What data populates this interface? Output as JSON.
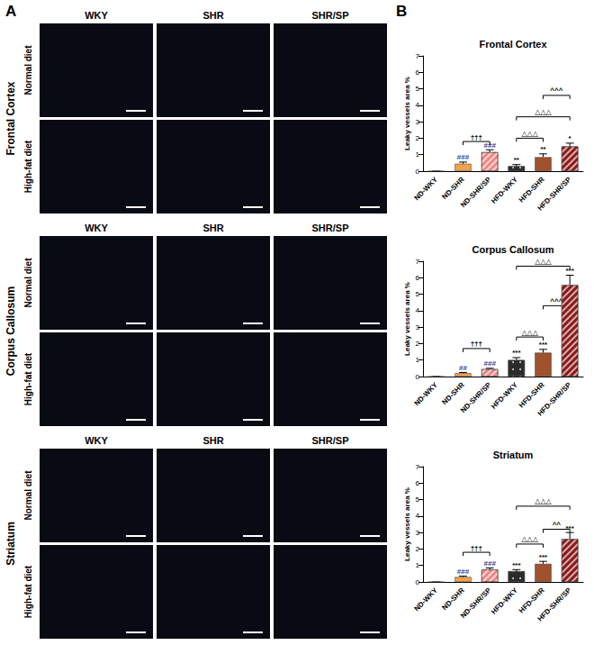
{
  "panel_a": {
    "label": "A",
    "columns": [
      "WKY",
      "SHR",
      "SHR/SP"
    ],
    "rows": [
      "Normal diet",
      "High-fat diet"
    ],
    "regions": [
      "Frontal Cortex",
      "Corpus Callosum",
      "Striatum"
    ]
  },
  "panel_b": {
    "label": "B"
  },
  "chart_data": [
    {
      "type": "bar",
      "title": "Frontal Cortex",
      "y_label": "Leaky vessels area %",
      "categories": [
        "ND-WKY",
        "ND-SHR",
        "ND-SHR/SP",
        "HFD-WKY",
        "HFD-SHR",
        "HFD-SHR/SP"
      ],
      "values": [
        0,
        0.45,
        1.15,
        0.3,
        0.85,
        1.5
      ],
      "errors": [
        0,
        0.1,
        0.15,
        0.1,
        0.2,
        0.2
      ],
      "colors": [
        "#f2a24a",
        "#f2a24a",
        "#f08585",
        "#2b2b2b",
        "#a0522d",
        "#8b1a1a"
      ],
      "significance": [
        null,
        "###",
        "###",
        "**",
        "**",
        "*"
      ],
      "brackets": [
        {
          "from": "ND-SHR",
          "to": "ND-SHR/SP",
          "y": 1.8,
          "label": "†††"
        },
        {
          "from": "HFD-WKY",
          "to": "HFD-SHR",
          "y": 2.0,
          "label": "△△△"
        },
        {
          "from": "HFD-WKY",
          "to": "HFD-SHR/SP",
          "y": 3.3,
          "label": "△△△"
        },
        {
          "from": "HFD-SHR",
          "to": "HFD-SHR/SP",
          "y": 4.6,
          "label": "^^^"
        }
      ],
      "ylim": [
        0,
        7
      ],
      "yticks": [
        0,
        1,
        2,
        3,
        4,
        5,
        6,
        7
      ],
      "grid": false
    },
    {
      "type": "bar",
      "title": "Corpus Callosum",
      "y_label": "Leaky vessels area %",
      "categories": [
        "ND-WKY",
        "ND-SHR",
        "ND-SHR/SP",
        "HFD-WKY",
        "HFD-SHR",
        "HFD-SHR/SP"
      ],
      "values": [
        0,
        0.2,
        0.45,
        1.0,
        1.45,
        5.55
      ],
      "errors": [
        0,
        0.05,
        0.05,
        0.15,
        0.2,
        0.6
      ],
      "colors": [
        "#f2a24a",
        "#f2a24a",
        "#f08585",
        "#2b2b2b",
        "#a0522d",
        "#8b1a1a"
      ],
      "significance": [
        null,
        "##",
        "###",
        "***",
        "***",
        "***"
      ],
      "brackets": [
        {
          "from": "ND-SHR",
          "to": "ND-SHR/SP",
          "y": 1.7,
          "label": "†††"
        },
        {
          "from": "HFD-WKY",
          "to": "HFD-SHR",
          "y": 2.4,
          "label": "△△△"
        },
        {
          "from": "HFD-SHR",
          "to": "HFD-SHR/SP",
          "y": 4.3,
          "label": "^^^"
        },
        {
          "from": "HFD-WKY",
          "to": "HFD-SHR/SP",
          "y": 6.7,
          "label": "△△△"
        }
      ],
      "ylim": [
        0,
        7
      ],
      "yticks": [
        0,
        1,
        2,
        3,
        4,
        5,
        6,
        7
      ],
      "grid": false
    },
    {
      "type": "bar",
      "title": "Striatum",
      "y_label": "Leaky vessels area %",
      "categories": [
        "ND-WKY",
        "ND-SHR",
        "ND-SHR/SP",
        "HFD-WKY",
        "HFD-SHR",
        "HFD-SHR/SP"
      ],
      "values": [
        0,
        0.3,
        0.75,
        0.65,
        1.1,
        2.6
      ],
      "errors": [
        0,
        0.05,
        0.1,
        0.1,
        0.15,
        0.4
      ],
      "colors": [
        "#f2a24a",
        "#f2a24a",
        "#f08585",
        "#2b2b2b",
        "#a0522d",
        "#8b1a1a"
      ],
      "significance": [
        null,
        "###",
        "###",
        "***",
        "***",
        "***"
      ],
      "brackets": [
        {
          "from": "ND-SHR",
          "to": "ND-SHR/SP",
          "y": 1.8,
          "label": "†††"
        },
        {
          "from": "HFD-WKY",
          "to": "HFD-SHR",
          "y": 2.3,
          "label": "△△△"
        },
        {
          "from": "HFD-SHR",
          "to": "HFD-SHR/SP",
          "y": 3.2,
          "label": "^^"
        },
        {
          "from": "HFD-WKY",
          "to": "HFD-SHR/SP",
          "y": 4.6,
          "label": "△△△"
        }
      ],
      "ylim": [
        0,
        7
      ],
      "yticks": [
        0,
        1,
        2,
        3,
        4,
        5,
        6,
        7
      ],
      "grid": false
    }
  ]
}
